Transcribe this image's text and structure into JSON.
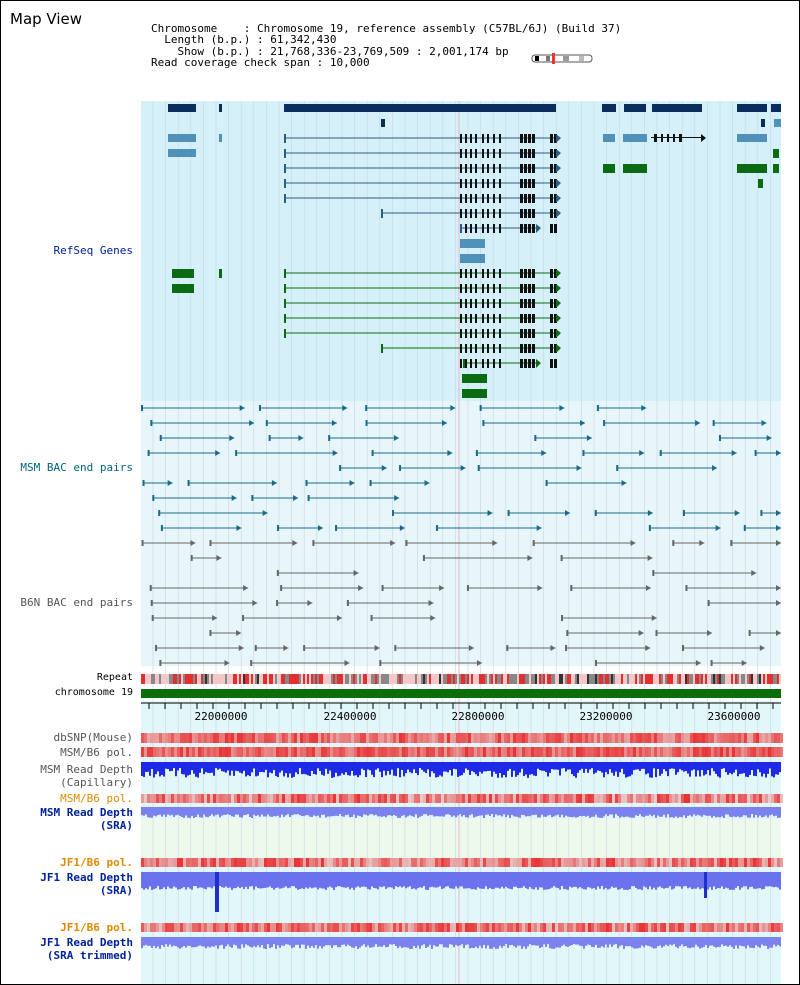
{
  "title": "Map View",
  "info": {
    "chromosome_key": "Chromosome",
    "chromosome_val": "Chromosome 19, reference assembly (C57BL/6J) (Build 37)",
    "length_key": "Length (b.p.)",
    "length_val": "61,342,430",
    "show_key": "Show (b.p.)",
    "show_val": "21,768,336-23,769,509 : 2,001,174 bp",
    "span_key": "Read coverage check span",
    "span_val": "10,000"
  },
  "tracks": {
    "refseq": "RefSeq Genes",
    "msm_bac": "MSM BAC end pairs",
    "b6n_bac": "B6N BAC end pairs",
    "repeat": "Repeat",
    "chromosome": "chromosome 19",
    "dbsnp": "dbSNP(Mouse)",
    "msm_pol1": "MSM/B6 pol.",
    "msm_depth_cap_1": "MSM Read Depth",
    "msm_depth_cap_2": "(Capillary)",
    "msm_pol2": "MSM/B6 pol.",
    "msm_depth_sra_1": "MSM Read Depth",
    "msm_depth_sra_2": "(SRA)",
    "jf1_pol1": "JF1/B6 pol.",
    "jf1_depth_sra_1": "JF1 Read Depth",
    "jf1_depth_sra_2": "(SRA)",
    "jf1_pol2": "JF1/B6 pol.",
    "jf1_depth_trim_1": "JF1 Read Depth",
    "jf1_depth_trim_2": "(SRA trimmed)"
  },
  "axis": {
    "ticks": [
      "22000000",
      "22400000",
      "22800000",
      "23200000",
      "23600000"
    ]
  },
  "colors": {
    "refseq_bg": "#d6f0fa",
    "bac_bg": "#e6f6fb",
    "navy": "#0a2d5e",
    "steel": "#4f91b8",
    "green": "#0a6b12",
    "teal": "#1a6b8a",
    "gray": "#666666",
    "red": "#e8383a",
    "blue": "#2233e0",
    "light_blue": "#7f86f0",
    "orange_label": "#e08a00",
    "navy_label": "#00239c",
    "teal_label": "#00637e"
  }
}
